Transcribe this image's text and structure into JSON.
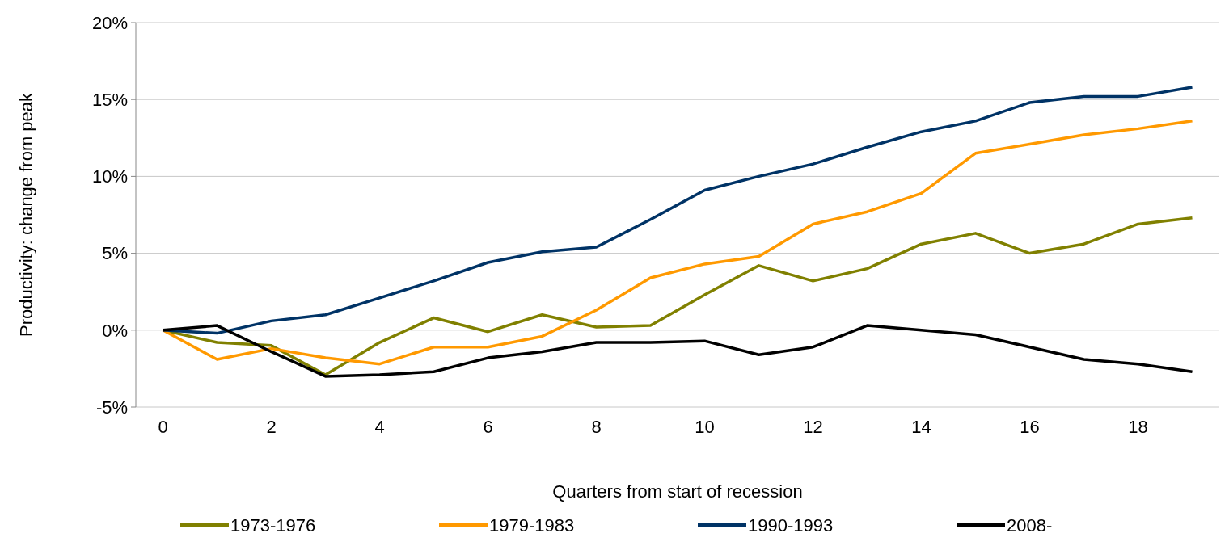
{
  "chart_data": {
    "type": "line",
    "xlabel": "Quarters from start of recession",
    "ylabel": "Productivity: change from peak",
    "x": [
      0,
      1,
      2,
      3,
      4,
      5,
      6,
      7,
      8,
      9,
      10,
      11,
      12,
      13,
      14,
      15,
      16,
      17,
      18,
      19
    ],
    "xlim": [
      -0.5,
      19.5
    ],
    "xticks": [
      0,
      2,
      4,
      6,
      8,
      10,
      12,
      14,
      16,
      18
    ],
    "ylim": [
      -5,
      20
    ],
    "yticks": [
      {
        "value": -5,
        "label": "-5%"
      },
      {
        "value": 0,
        "label": "0%"
      },
      {
        "value": 5,
        "label": "5%"
      },
      {
        "value": 10,
        "label": "10%"
      },
      {
        "value": 15,
        "label": "15%"
      },
      {
        "value": 20,
        "label": "20%"
      }
    ],
    "grid": "y",
    "legend": "bottom",
    "marker": "none",
    "line_style": "solid",
    "series": [
      {
        "name": "1973-1976",
        "color": "#808000",
        "values": [
          0,
          -0.8,
          -1.0,
          -2.9,
          -0.8,
          0.8,
          -0.1,
          1.0,
          0.2,
          0.3,
          2.3,
          4.2,
          3.2,
          4.0,
          5.6,
          6.3,
          5.0,
          5.6,
          6.9,
          7.3
        ]
      },
      {
        "name": "1979-1983",
        "color": "#ff9900",
        "values": [
          0,
          -1.9,
          -1.2,
          -1.8,
          -2.2,
          -1.1,
          -1.1,
          -0.4,
          1.3,
          3.4,
          4.3,
          4.8,
          6.9,
          7.7,
          8.9,
          11.5,
          12.1,
          12.7,
          13.1,
          13.6
        ]
      },
      {
        "name": "1990-1993",
        "color": "#003366",
        "values": [
          0,
          -0.2,
          0.6,
          1.0,
          2.1,
          3.2,
          4.4,
          5.1,
          5.4,
          7.2,
          9.1,
          10.0,
          10.8,
          11.9,
          12.9,
          13.6,
          14.8,
          15.2,
          15.2,
          15.8
        ]
      },
      {
        "name": "2008-",
        "color": "#000000",
        "values": [
          0,
          0.3,
          -1.4,
          -3.0,
          -2.9,
          -2.7,
          -1.8,
          -1.4,
          -0.8,
          -0.8,
          -0.7,
          -1.6,
          -1.1,
          0.3,
          0.0,
          -0.3,
          -1.1,
          -1.9,
          -2.2,
          -2.7
        ]
      }
    ]
  }
}
